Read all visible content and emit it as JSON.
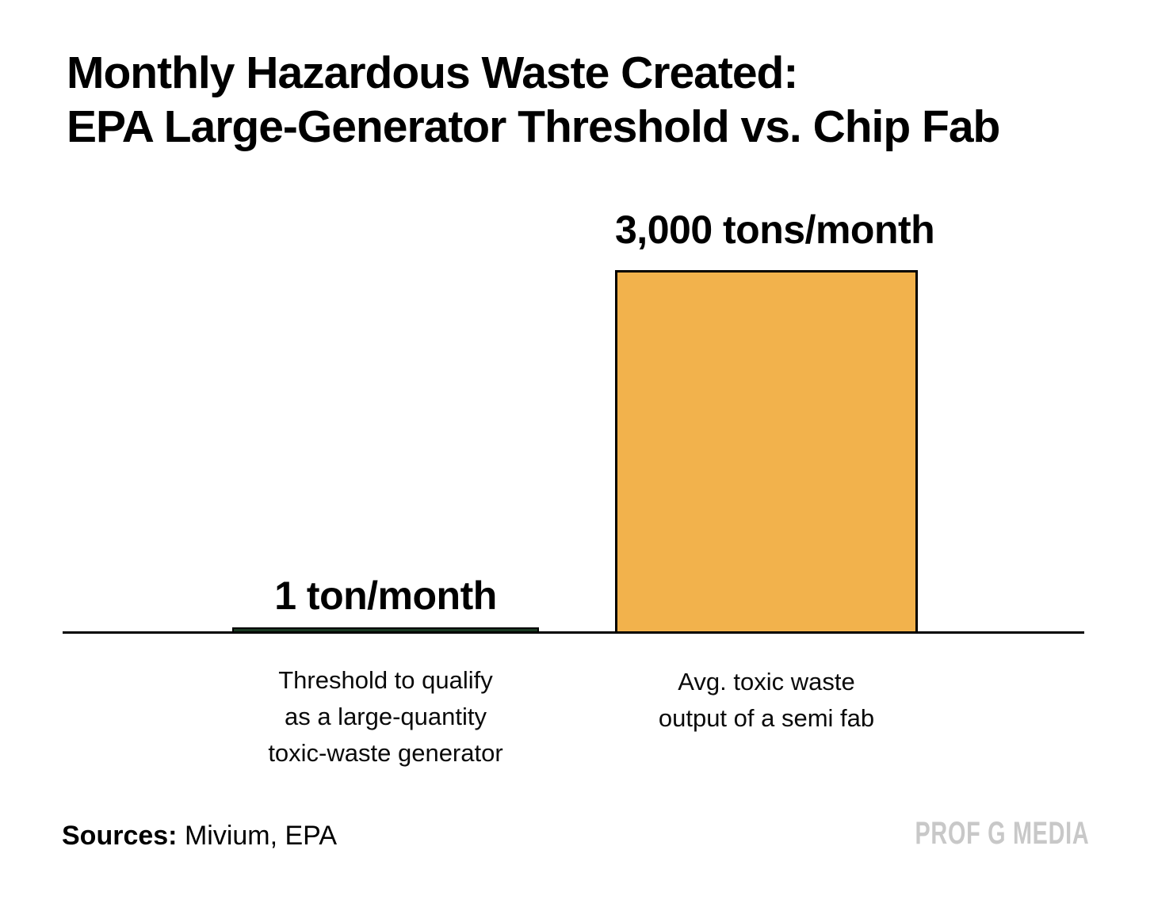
{
  "title": {
    "line1": "Monthly Hazardous Waste Created:",
    "line2": "EPA Large-Generator Threshold vs. Chip Fab"
  },
  "chart_data": {
    "type": "bar",
    "title": "Monthly Hazardous Waste Created: EPA Large-Generator Threshold vs. Chip Fab",
    "categories": [
      "Threshold to qualify as a large-quantity toxic-waste generator",
      "Avg. toxic waste output of a semi fab"
    ],
    "values": [
      1,
      3000
    ],
    "unit": "tons/month",
    "value_labels": [
      "1 ton/month",
      "3,000 tons/month"
    ],
    "category_lines": [
      [
        "Threshold to qualify",
        "as a large-quantity",
        "toxic-waste generator"
      ],
      [
        "Avg. toxic waste",
        "output of a semi fab"
      ]
    ],
    "ylim": [
      0,
      3000
    ],
    "bar_colors": [
      "#1b3a22",
      "#f2b24c"
    ],
    "bar_border_color": "#000000",
    "axis_color": "#000000",
    "grid": false,
    "legend": false
  },
  "footer": {
    "sources_label": "Sources:",
    "sources_value": " Mivium, EPA",
    "brand": "PROF G MEDIA"
  }
}
